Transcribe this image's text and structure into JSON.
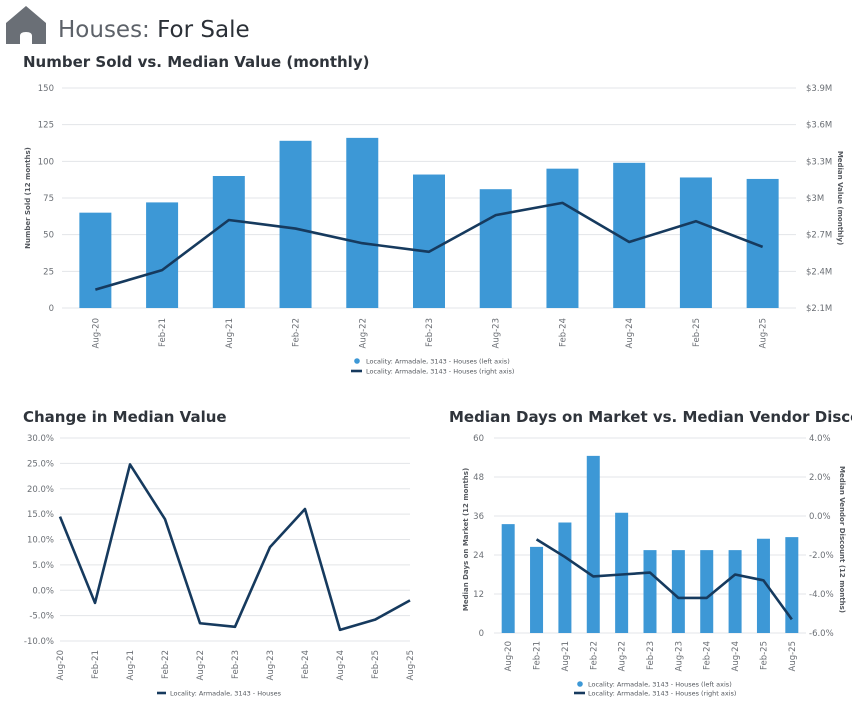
{
  "header": {
    "title_part1": "Houses:",
    "title_part2": "For Sale",
    "icon": "house-icon"
  },
  "colors": {
    "bar": "#3d98d6",
    "line": "#163a5e",
    "grid": "#e3e5e8",
    "icon": "#6a6f76"
  },
  "chart_data": [
    {
      "id": "sold-vs-value",
      "type": "bar",
      "title": "Number Sold vs. Median Value (monthly)",
      "categories": [
        "Aug-20",
        "Feb-21",
        "Aug-21",
        "Feb-22",
        "Aug-22",
        "Feb-23",
        "Aug-23",
        "Feb-24",
        "Aug-24",
        "Feb-25",
        "Aug-25"
      ],
      "ylabel": "Number Sold (12 months)",
      "ylabel_right": "Median Value (monthly)",
      "ylim": [
        0,
        150
      ],
      "yticks": [
        0,
        25,
        50,
        75,
        100,
        125,
        150
      ],
      "y2lim": [
        2.1,
        3.9
      ],
      "y2ticks": [
        "$2.1M",
        "$2.4M",
        "$2.7M",
        "$3M",
        "$3.3M",
        "$3.6M",
        "$3.9M"
      ],
      "series": [
        {
          "name": "Locality: Armadale, 3143 - Houses (left axis)",
          "type": "bar",
          "values": [
            65,
            72,
            90,
            114,
            116,
            91,
            81,
            95,
            99,
            89,
            88
          ]
        },
        {
          "name": "Locality: Armadale, 3143 - Houses (right axis)",
          "type": "line",
          "values": [
            2.25,
            2.41,
            2.82,
            2.75,
            2.63,
            2.56,
            2.86,
            2.96,
            2.64,
            2.81,
            2.6
          ]
        }
      ]
    },
    {
      "id": "change-median",
      "type": "line",
      "title": "Change in Median Value",
      "categories": [
        "Aug-20",
        "Feb-21",
        "Aug-21",
        "Feb-22",
        "Aug-22",
        "Feb-23",
        "Aug-23",
        "Feb-24",
        "Aug-24",
        "Feb-25",
        "Aug-25"
      ],
      "ylim": [
        -10,
        30
      ],
      "yticks": [
        "30.0%",
        "25.0%",
        "20.0%",
        "15.0%",
        "10.0%",
        "5.0%",
        "0.0%",
        "-5.0%",
        "-10.0%"
      ],
      "series": [
        {
          "name": "Locality: Armadale, 3143 - Houses",
          "values": [
            14.5,
            -2.5,
            24.8,
            14.0,
            -6.5,
            -7.2,
            8.5,
            16.0,
            -7.8,
            -5.8,
            -2.0
          ]
        }
      ]
    },
    {
      "id": "days-vs-discount",
      "type": "bar",
      "title": "Median Days on Market vs. Median Vendor Discount",
      "categories": [
        "Aug-20",
        "Feb-21",
        "Aug-21",
        "Feb-22",
        "Aug-22",
        "Feb-23",
        "Aug-23",
        "Feb-24",
        "Aug-24",
        "Feb-25",
        "Aug-25"
      ],
      "ylabel": "Median Days on Market (12 months)",
      "ylabel_right": "Median Vendor Discount (12 months)",
      "ylim": [
        0,
        60
      ],
      "yticks": [
        0,
        12,
        24,
        36,
        48,
        60
      ],
      "y2lim": [
        -6,
        4
      ],
      "y2ticks": [
        "-6.0%",
        "-4.0%",
        "-2.0%",
        "0.0%",
        "2.0%",
        "4.0%"
      ],
      "series": [
        {
          "name": "Locality: Armadale, 3143 - Houses (left axis)",
          "type": "bar",
          "values": [
            33.5,
            26.5,
            34,
            54.5,
            37,
            25.5,
            25.5,
            25.5,
            25.5,
            29,
            29.5
          ]
        },
        {
          "name": "Locality: Armadale, 3143 - Houses (right axis)",
          "type": "line",
          "values": [
            null,
            -1.2,
            -2.1,
            -3.1,
            -3.0,
            -2.9,
            -4.2,
            -4.2,
            -3.0,
            -3.3,
            -5.3
          ]
        }
      ]
    }
  ]
}
